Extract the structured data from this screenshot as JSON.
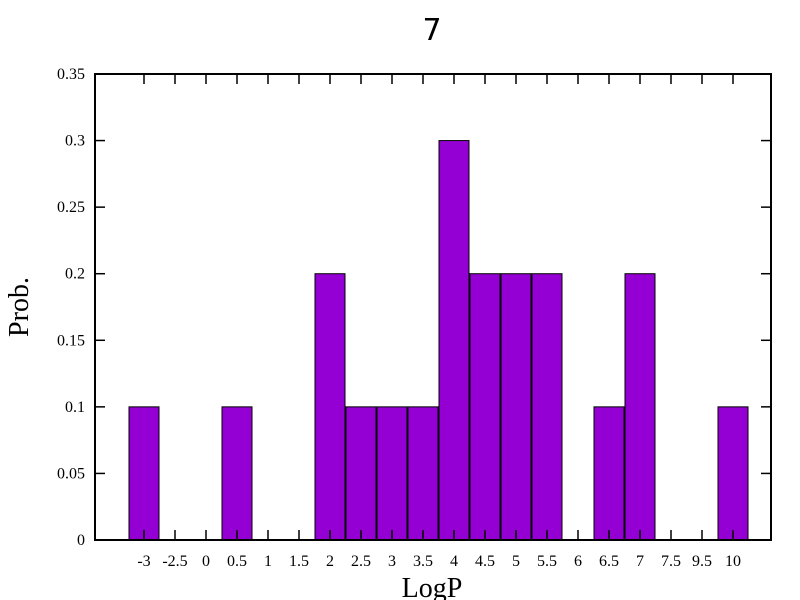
{
  "chart_data": {
    "type": "bar",
    "title": "7",
    "xlabel": "LogP",
    "ylabel": "Prob.",
    "categories": [
      "-3",
      "-2.5",
      "0",
      "0.5",
      "1",
      "1.5",
      "2",
      "2.5",
      "3",
      "3.5",
      "4",
      "4.5",
      "5",
      "5.5",
      "6",
      "6.5",
      "7",
      "7.5",
      "9.5",
      "10"
    ],
    "values": [
      0.1,
      0,
      0,
      0.1,
      0,
      0,
      0.2,
      0.1,
      0.1,
      0.1,
      0.3,
      0.2,
      0.2,
      0.2,
      0,
      0.1,
      0.2,
      0,
      0,
      0.1
    ],
    "ylim": [
      0,
      0.35
    ],
    "yticks": [
      "0",
      "0.05",
      "0.1",
      "0.15",
      "0.2",
      "0.25",
      "0.3",
      "0.35"
    ],
    "grid": false,
    "colors": {
      "bar": "#9400d3"
    }
  }
}
